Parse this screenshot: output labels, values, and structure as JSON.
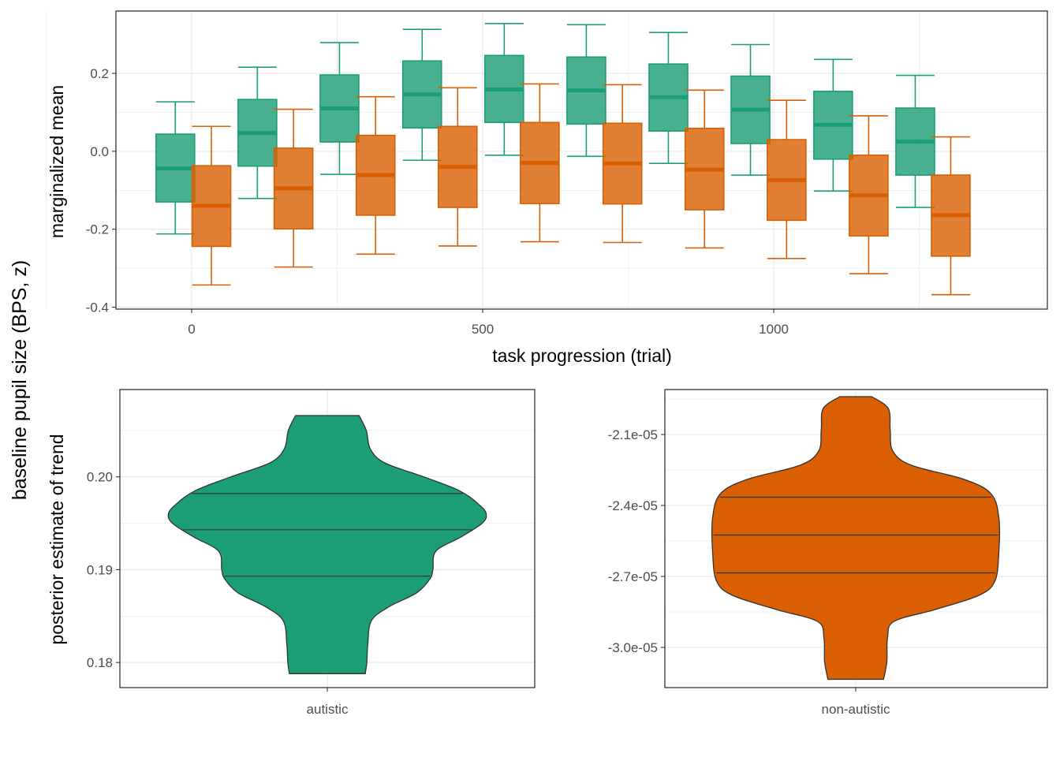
{
  "colors": {
    "autistic": "#1b9e77",
    "non_autistic": "#d95f02",
    "panel_border": "#333333",
    "grid": "#ebebeb"
  },
  "shared_ylabel": "baseline pupil size (BPS, z)",
  "chart_data": [
    {
      "type": "box",
      "xlabel": "task progression (trial)",
      "ylabel": "marginalized mean",
      "xlim": [
        -130,
        1470
      ],
      "ylim": [
        -0.405,
        0.36
      ],
      "x_ticks": [
        {
          "value": 0,
          "label": "0"
        },
        {
          "value": 500,
          "label": "500"
        },
        {
          "value": 1000,
          "label": "1000"
        }
      ],
      "y_ticks": [
        {
          "value": 0.2,
          "label": "0.2"
        },
        {
          "value": 0.0,
          "label": "0.0"
        },
        {
          "value": -0.2,
          "label": "-0.2"
        },
        {
          "value": -0.4,
          "label": "-0.4"
        }
      ],
      "grid": true,
      "series": [
        {
          "group": "autistic",
          "boxes": [
            {
              "x": -28,
              "lower_whisker": -0.212,
              "q1": -0.13,
              "median": -0.044,
              "q3": 0.044,
              "upper_whisker": 0.127
            },
            {
              "x": 113,
              "lower_whisker": -0.121,
              "q1": -0.038,
              "median": 0.047,
              "q3": 0.133,
              "upper_whisker": 0.216
            },
            {
              "x": 254,
              "lower_whisker": -0.059,
              "q1": 0.024,
              "median": 0.11,
              "q3": 0.196,
              "upper_whisker": 0.279
            },
            {
              "x": 396,
              "lower_whisker": -0.023,
              "q1": 0.06,
              "median": 0.146,
              "q3": 0.232,
              "upper_whisker": 0.313
            },
            {
              "x": 537,
              "lower_whisker": -0.01,
              "q1": 0.074,
              "median": 0.159,
              "q3": 0.246,
              "upper_whisker": 0.328
            },
            {
              "x": 678,
              "lower_whisker": -0.013,
              "q1": 0.07,
              "median": 0.156,
              "q3": 0.242,
              "upper_whisker": 0.325
            },
            {
              "x": 819,
              "lower_whisker": -0.031,
              "q1": 0.052,
              "median": 0.139,
              "q3": 0.224,
              "upper_whisker": 0.305
            },
            {
              "x": 960,
              "lower_whisker": -0.061,
              "q1": 0.02,
              "median": 0.107,
              "q3": 0.193,
              "upper_whisker": 0.274
            },
            {
              "x": 1102,
              "lower_whisker": -0.102,
              "q1": -0.02,
              "median": 0.068,
              "q3": 0.154,
              "upper_whisker": 0.236
            },
            {
              "x": 1243,
              "lower_whisker": -0.144,
              "q1": -0.061,
              "median": 0.025,
              "q3": 0.111,
              "upper_whisker": 0.195
            }
          ]
        },
        {
          "group": "non-autistic",
          "boxes": [
            {
              "x": 34,
              "lower_whisker": -0.343,
              "q1": -0.244,
              "median": -0.14,
              "q3": -0.037,
              "upper_whisker": 0.064
            },
            {
              "x": 175,
              "lower_whisker": -0.297,
              "q1": -0.199,
              "median": -0.095,
              "q3": 0.008,
              "upper_whisker": 0.108
            },
            {
              "x": 316,
              "lower_whisker": -0.264,
              "q1": -0.164,
              "median": -0.061,
              "q3": 0.041,
              "upper_whisker": 0.14
            },
            {
              "x": 457,
              "lower_whisker": -0.243,
              "q1": -0.144,
              "median": -0.04,
              "q3": 0.064,
              "upper_whisker": 0.163
            },
            {
              "x": 598,
              "lower_whisker": -0.232,
              "q1": -0.134,
              "median": -0.03,
              "q3": 0.074,
              "upper_whisker": 0.173
            },
            {
              "x": 740,
              "lower_whisker": -0.234,
              "q1": -0.135,
              "median": -0.031,
              "q3": 0.072,
              "upper_whisker": 0.171
            },
            {
              "x": 881,
              "lower_whisker": -0.248,
              "q1": -0.15,
              "median": -0.047,
              "q3": 0.059,
              "upper_whisker": 0.157
            },
            {
              "x": 1022,
              "lower_whisker": -0.275,
              "q1": -0.177,
              "median": -0.074,
              "q3": 0.03,
              "upper_whisker": 0.131
            },
            {
              "x": 1163,
              "lower_whisker": -0.314,
              "q1": -0.217,
              "median": -0.113,
              "q3": -0.01,
              "upper_whisker": 0.091
            },
            {
              "x": 1304,
              "lower_whisker": -0.368,
              "q1": -0.269,
              "median": -0.164,
              "q3": -0.061,
              "upper_whisker": 0.037
            }
          ]
        }
      ]
    },
    {
      "type": "violin",
      "group": "autistic",
      "category": "autistic",
      "ylabel": "posterior estimate of trend",
      "ylim": [
        0.1773,
        0.2094
      ],
      "y_ticks": [
        {
          "value": 0.18,
          "label": "0.18"
        },
        {
          "value": 0.19,
          "label": "0.19"
        },
        {
          "value": 0.2,
          "label": "0.20"
        }
      ],
      "quantiles": [
        0.1893,
        0.1943,
        0.1982
      ],
      "density_profile": [
        {
          "y": 0.1788,
          "half_width": 0.37
        },
        {
          "y": 0.18,
          "half_width": 0.385
        },
        {
          "y": 0.182,
          "half_width": 0.395
        },
        {
          "y": 0.1845,
          "half_width": 0.43
        },
        {
          "y": 0.186,
          "half_width": 0.6
        },
        {
          "y": 0.1875,
          "half_width": 0.87
        },
        {
          "y": 0.189,
          "half_width": 1.0
        },
        {
          "y": 0.19,
          "half_width": 1.03
        },
        {
          "y": 0.192,
          "half_width": 1.06
        },
        {
          "y": 0.1935,
          "half_width": 1.3
        },
        {
          "y": 0.195,
          "half_width": 1.51
        },
        {
          "y": 0.196,
          "half_width": 1.55
        },
        {
          "y": 0.197,
          "half_width": 1.48
        },
        {
          "y": 0.1985,
          "half_width": 1.29
        },
        {
          "y": 0.2,
          "half_width": 0.94
        },
        {
          "y": 0.2015,
          "half_width": 0.56
        },
        {
          "y": 0.203,
          "half_width": 0.42
        },
        {
          "y": 0.205,
          "half_width": 0.38
        },
        {
          "y": 0.2066,
          "half_width": 0.31
        }
      ]
    },
    {
      "type": "violin",
      "group": "non-autistic",
      "category": "non-autistic",
      "ylim": [
        -3.17e-05,
        -1.91e-05
      ],
      "y_ticks": [
        {
          "value": -3e-05,
          "label": "-3.0e-05"
        },
        {
          "value": -2.7e-05,
          "label": "-2.7e-05"
        },
        {
          "value": -2.4e-05,
          "label": "-2.4e-05"
        },
        {
          "value": -2.1e-05,
          "label": "-2.1e-05"
        }
      ],
      "quantiles": [
        -2.685e-05,
        -2.525e-05,
        -2.365e-05
      ],
      "density_profile": [
        {
          "y": -3.135e-05,
          "half_width": 0.21
        },
        {
          "y": -3.06e-05,
          "half_width": 0.235
        },
        {
          "y": -2.96e-05,
          "half_width": 0.24
        },
        {
          "y": -2.89e-05,
          "half_width": 0.29
        },
        {
          "y": -2.84e-05,
          "half_width": 0.6
        },
        {
          "y": -2.78e-05,
          "half_width": 0.93
        },
        {
          "y": -2.72e-05,
          "half_width": 1.05
        },
        {
          "y": -2.6e-05,
          "half_width": 1.08
        },
        {
          "y": -2.45e-05,
          "half_width": 1.08
        },
        {
          "y": -2.35e-05,
          "half_width": 1.02
        },
        {
          "y": -2.29e-05,
          "half_width": 0.82
        },
        {
          "y": -2.23e-05,
          "half_width": 0.42
        },
        {
          "y": -2.17e-05,
          "half_width": 0.28
        },
        {
          "y": -2.08e-05,
          "half_width": 0.26
        },
        {
          "y": -1.99e-05,
          "half_width": 0.245
        },
        {
          "y": -1.94e-05,
          "half_width": 0.12
        }
      ]
    }
  ]
}
